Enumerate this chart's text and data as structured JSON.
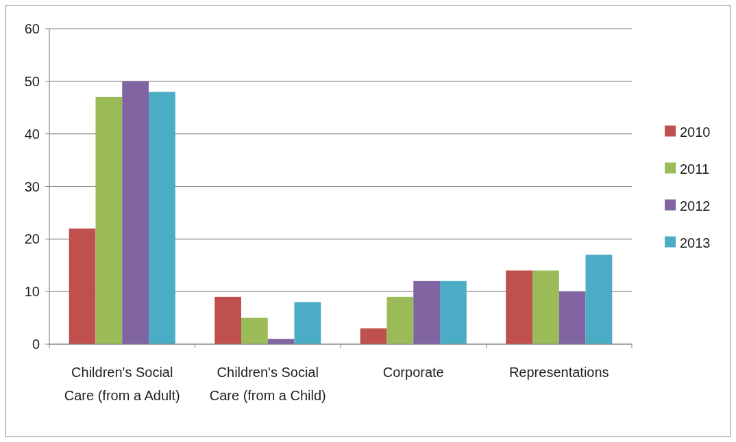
{
  "chart_data": {
    "type": "bar",
    "categories": [
      "Children's Social Care (from a Adult)",
      "Children's Social Care (from a Child)",
      "Corporate",
      "Representations"
    ],
    "series": [
      {
        "name": "2010",
        "color": "#c0504d",
        "values": [
          22,
          9,
          3,
          14
        ]
      },
      {
        "name": "2011",
        "color": "#9bbb59",
        "values": [
          47,
          5,
          9,
          14
        ]
      },
      {
        "name": "2012",
        "color": "#8064a2",
        "values": [
          50,
          1,
          12,
          10
        ]
      },
      {
        "name": "2013",
        "color": "#4bacc6",
        "values": [
          48,
          8,
          12,
          17
        ]
      }
    ],
    "ylim": [
      0,
      60
    ],
    "yticks": [
      0,
      10,
      20,
      30,
      40,
      50,
      60
    ],
    "grid": "y",
    "legend": "right"
  }
}
